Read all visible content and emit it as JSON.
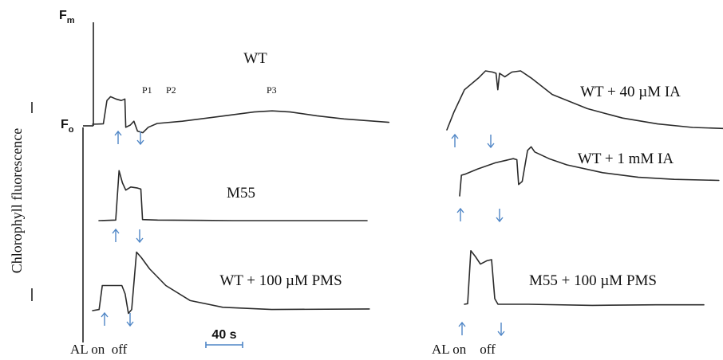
{
  "ylabel": "Chlorophyll fluorescence",
  "axis_marks": {
    "fm": "F",
    "fm_sub": "m",
    "fo": "F",
    "fo_sub": "o"
  },
  "scale_bar": "40 s",
  "light_labels": {
    "left": "AL on  off",
    "right": "AL on    off"
  },
  "chart_data": [
    {
      "type": "line",
      "title": "WT",
      "peak_labels": [
        "P1",
        "P2",
        "P3"
      ],
      "series": [
        {
          "values": [
            [
              0,
              0
            ],
            [
              6,
              0.01
            ],
            [
              8,
              0.62
            ],
            [
              10,
              0.72
            ],
            [
              13,
              0.66
            ],
            [
              16,
              0.62
            ],
            [
              18,
              0.66
            ],
            [
              18.5,
              -0.08
            ],
            [
              21,
              -0.02
            ],
            [
              23,
              0.08
            ],
            [
              25,
              -0.18
            ],
            [
              28,
              -0.22
            ],
            [
              31,
              -0.08
            ],
            [
              36,
              0.02
            ],
            [
              50,
              0.08
            ],
            [
              70,
              0.2
            ],
            [
              90,
              0.32
            ],
            [
              100,
              0.35
            ],
            [
              110,
              0.32
            ],
            [
              125,
              0.22
            ],
            [
              140,
              0.14
            ],
            [
              165,
              0.05
            ]
          ]
        }
      ]
    },
    {
      "type": "line",
      "title": "M55",
      "series": [
        {
          "values": [
            [
              0,
              0
            ],
            [
              10,
              0.01
            ],
            [
              12,
              0.95
            ],
            [
              14,
              0.72
            ],
            [
              16,
              0.58
            ],
            [
              19,
              0.64
            ],
            [
              23,
              0.62
            ],
            [
              25,
              0.6
            ],
            [
              26,
              0.02
            ],
            [
              35,
              0.01
            ],
            [
              80,
              0.0
            ],
            [
              160,
              0.0
            ]
          ]
        }
      ]
    },
    {
      "type": "line",
      "title": "WT + 100 µM PMS",
      "series": [
        {
          "values": [
            [
              0,
              0
            ],
            [
              4,
              0.02
            ],
            [
              6,
              0.45
            ],
            [
              18,
              0.45
            ],
            [
              20,
              0.3
            ],
            [
              22,
              -0.05
            ],
            [
              24,
              0.02
            ],
            [
              27,
              1.05
            ],
            [
              30,
              0.95
            ],
            [
              35,
              0.75
            ],
            [
              45,
              0.45
            ],
            [
              60,
              0.18
            ],
            [
              80,
              0.06
            ],
            [
              110,
              0.02
            ],
            [
              170,
              0.03
            ]
          ]
        }
      ]
    },
    {
      "type": "line",
      "title": "WT + 40 µM IA",
      "series": [
        {
          "values": [
            [
              0,
              0
            ],
            [
              4,
              0.3
            ],
            [
              10,
              0.68
            ],
            [
              18,
              0.88
            ],
            [
              22,
              1.0
            ],
            [
              26,
              0.98
            ],
            [
              28,
              0.96
            ],
            [
              29,
              0.68
            ],
            [
              30,
              0.96
            ],
            [
              33,
              0.9
            ],
            [
              37,
              0.98
            ],
            [
              42,
              1.0
            ],
            [
              48,
              0.88
            ],
            [
              60,
              0.6
            ],
            [
              80,
              0.36
            ],
            [
              100,
              0.2
            ],
            [
              120,
              0.1
            ],
            [
              140,
              0.04
            ],
            [
              160,
              0.02
            ]
          ]
        }
      ]
    },
    {
      "type": "line",
      "title": "WT + 1 mM IA",
      "series": [
        {
          "values": [
            [
              0,
              0
            ],
            [
              1,
              0.4
            ],
            [
              3,
              0.42
            ],
            [
              10,
              0.52
            ],
            [
              20,
              0.64
            ],
            [
              30,
              0.72
            ],
            [
              32,
              0.7
            ],
            [
              33,
              0.22
            ],
            [
              35,
              0.28
            ],
            [
              38,
              0.88
            ],
            [
              40,
              0.95
            ],
            [
              42,
              0.85
            ],
            [
              50,
              0.72
            ],
            [
              60,
              0.6
            ],
            [
              80,
              0.45
            ],
            [
              100,
              0.36
            ],
            [
              120,
              0.32
            ],
            [
              145,
              0.3
            ]
          ]
        }
      ]
    },
    {
      "type": "line",
      "title": "M55 + 100  µM PMS",
      "series": [
        {
          "values": [
            [
              0,
              0
            ],
            [
              2,
              0.01
            ],
            [
              4,
              0.96
            ],
            [
              7,
              0.85
            ],
            [
              10,
              0.72
            ],
            [
              14,
              0.78
            ],
            [
              17,
              0.8
            ],
            [
              19,
              0.1
            ],
            [
              21,
              0.0
            ],
            [
              40,
              0.0
            ],
            [
              80,
              -0.02
            ],
            [
              120,
              -0.01
            ],
            [
              150,
              -0.01
            ]
          ]
        }
      ]
    }
  ]
}
